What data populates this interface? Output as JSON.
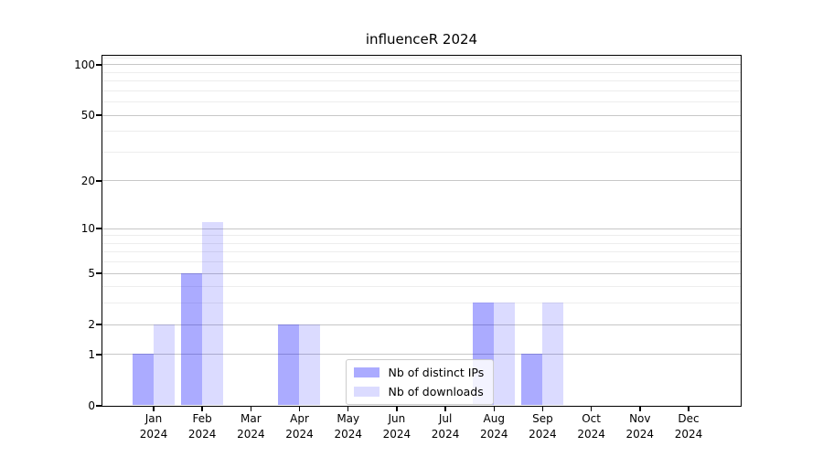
{
  "chart_data": {
    "type": "bar",
    "title": "influenceR 2024",
    "categories": [
      "Jan",
      "Feb",
      "Mar",
      "Apr",
      "May",
      "Jun",
      "Jul",
      "Aug",
      "Sep",
      "Oct",
      "Nov",
      "Dec"
    ],
    "category_sublabel": "2024",
    "series": [
      {
        "name": "Nb of distinct IPs",
        "color": "#0000FF54",
        "values": [
          1,
          5,
          0,
          2,
          0,
          0,
          0,
          3,
          1,
          0,
          0,
          0
        ]
      },
      {
        "name": "Nb of downloads",
        "color": "#0000FF24",
        "values": [
          2,
          11,
          0,
          2,
          0,
          0,
          0,
          3,
          3,
          0,
          0,
          0
        ]
      }
    ],
    "xlabel": "",
    "ylabel": "",
    "yscale": "log1p",
    "y_tick_labels": [
      0,
      1,
      2,
      5,
      10,
      20,
      50,
      100
    ],
    "y_minor_gridlines": [
      3,
      4,
      6,
      7,
      8,
      9,
      30,
      40,
      60,
      70,
      80,
      90,
      110
    ],
    "ylim": [
      0,
      113
    ],
    "grid": "horizontal",
    "legend_position": "lower-center-inside",
    "colors": {
      "spine": "#000000",
      "grid_major": "#c7c7c7",
      "grid_minor": "#ededed",
      "background": "#ffffff"
    }
  }
}
